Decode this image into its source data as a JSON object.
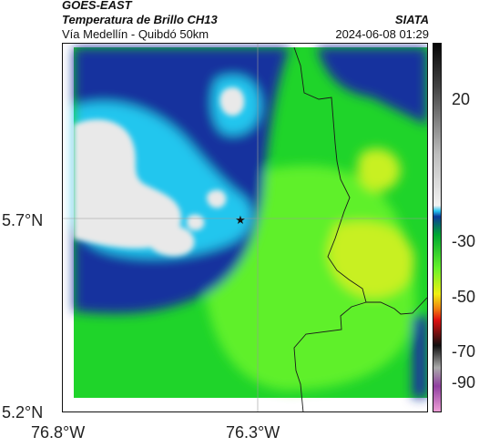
{
  "header": {
    "title": "GOES-EAST",
    "subtitle": "Temperatura de Brillo CH13",
    "route": "Vía Medellín - Quibdó 50km",
    "org": "SIATA",
    "datetime": "2024-06-08 01:29"
  },
  "map": {
    "lat_labels": [
      "5.7°N",
      "5.2°N"
    ],
    "lon_labels": [
      "76.8°W",
      "76.3°W"
    ],
    "marker_icon": "star-icon",
    "colors": {
      "cold_cloud": "#e9e9e9",
      "cyan": "#22c6ee",
      "blue": "#17309e",
      "green": "#1fd42a",
      "bright_green": "#5ff02a",
      "yellow_green": "#c8f020",
      "border_line": "#1a1a1a",
      "grid_line": "#9a9a9a"
    }
  },
  "colorbar": {
    "tick_labels": [
      "20",
      "-30",
      "-50",
      "-70",
      "-90"
    ]
  }
}
